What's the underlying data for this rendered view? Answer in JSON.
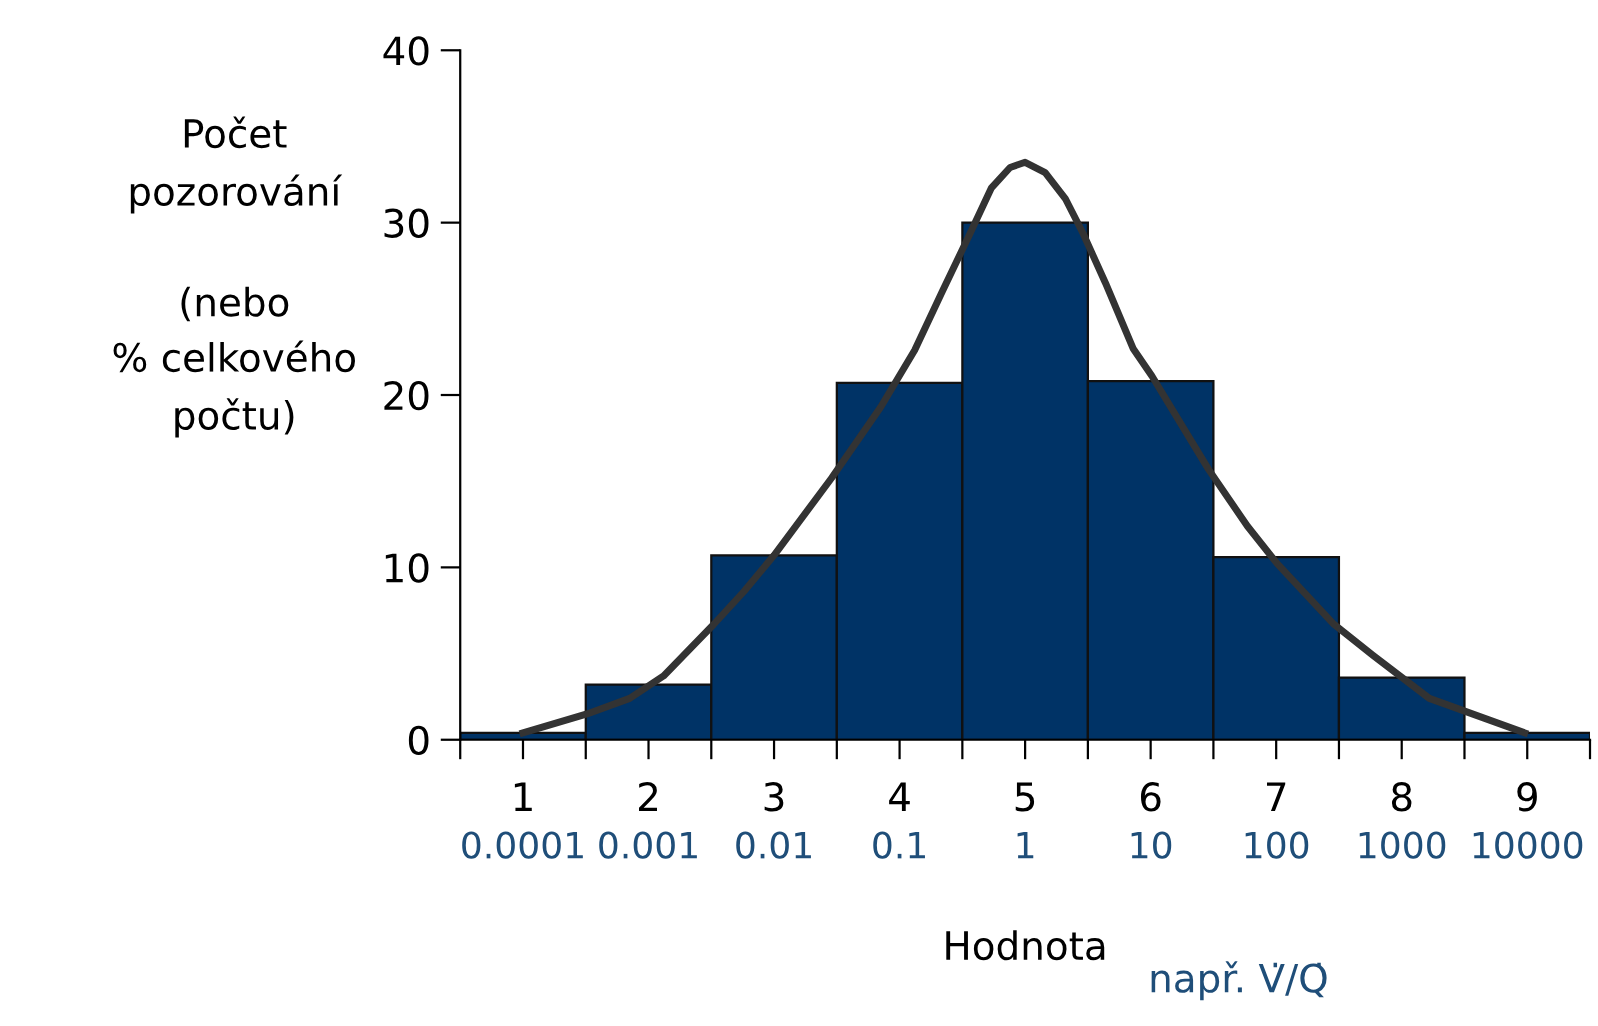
{
  "chart_data": {
    "type": "bar",
    "ylabel": "Počet\npozorování\n\n(nebo\n% celkového\npočtu)",
    "xlabel": "Hodnota",
    "annotations": [
      "např. V̇/Q̇"
    ],
    "xlim": [
      0.5,
      9.5
    ],
    "xticks": [
      {
        "value": 0.5,
        "label": null
      },
      1,
      {
        "value": 1.5,
        "label": null
      },
      2,
      {
        "value": 2.5,
        "label": null
      },
      3,
      {
        "value": 3.5,
        "label": null
      },
      4,
      {
        "value": 4.5,
        "label": null
      },
      5,
      {
        "value": 5.5,
        "label": null
      },
      6,
      {
        "value": 6.5,
        "label": null
      },
      7,
      {
        "value": 7.5,
        "label": null
      },
      8,
      {
        "value": 8.5,
        "label": null
      },
      9,
      {
        "value": 9.5,
        "label": null
      }
    ],
    "x2lim": [
      3.162e-05,
      31623
    ],
    "x2ticks": [
      0.0001,
      0.001,
      0.01,
      0.1,
      1,
      10,
      100,
      1000,
      10000
    ],
    "log": "x2",
    "ylim": [
      0,
      40
    ],
    "yticks": [
      0,
      10,
      20,
      30,
      40
    ],
    "grid": false,
    "legend": false,
    "series": [
      {
        "color": "#003366",
        "x": [
          1,
          2,
          3,
          4,
          5,
          6,
          7,
          8,
          9
        ],
        "values": [
          0.4,
          3.2,
          10.7,
          20.7,
          30,
          20.8,
          10.6,
          3.6,
          0.4
        ]
      },
      {
        "type": "line",
        "color": "#333333",
        "x": [
          1.0,
          1.51,
          1.85,
          2.12,
          2.52,
          2.76,
          3.0,
          3.46,
          3.85,
          4.12,
          4.34,
          4.55,
          4.73,
          4.88,
          5.0,
          5.16,
          5.32,
          5.46,
          5.64,
          5.86,
          6.01,
          6.46,
          6.77,
          7.01,
          7.46,
          7.77,
          8.22,
          8.98
        ],
        "values": [
          0.4,
          1.5,
          2.4,
          3.7,
          6.7,
          8.6,
          10.7,
          15.2,
          19.3,
          22.6,
          26.0,
          29.2,
          32.0,
          33.2,
          33.5,
          32.9,
          31.4,
          29.4,
          26.5,
          22.7,
          21.1,
          15.7,
          12.4,
          10.2,
          6.7,
          4.9,
          2.4,
          0.4
        ]
      }
    ]
  }
}
